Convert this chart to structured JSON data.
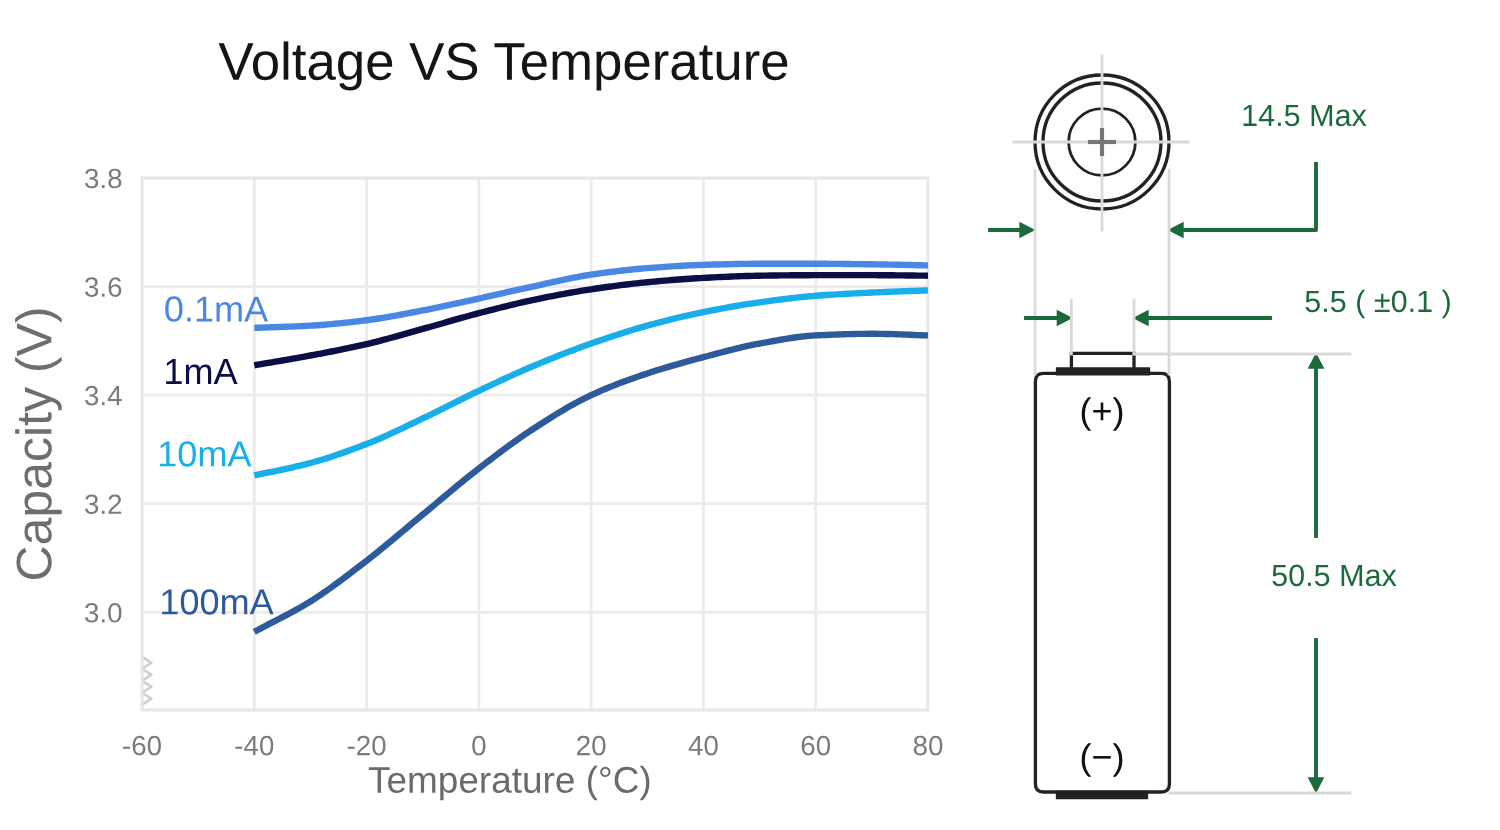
{
  "chart_data": {
    "type": "line",
    "title": "Voltage VS Temperature",
    "xlabel": "Temperature (°C)",
    "ylabel": "Capacity (V)",
    "xlim": [
      -60,
      80
    ],
    "xticks": [
      -60,
      -40,
      -20,
      0,
      20,
      40,
      60,
      80
    ],
    "ylim": [
      2.82,
      3.8
    ],
    "yticks": [
      {
        "value": 3,
        "label": "3.0"
      },
      3.2,
      3.4,
      3.6,
      3.8
    ],
    "grid": true,
    "x": [
      -40,
      -30,
      -20,
      -10,
      0,
      10,
      20,
      30,
      40,
      50,
      60,
      70,
      80
    ],
    "series": [
      {
        "name": "0.1mA",
        "color": "#4a86e4",
        "values": [
          3.524,
          3.528,
          3.538,
          3.556,
          3.578,
          3.601,
          3.622,
          3.634,
          3.64,
          3.642,
          3.642,
          3.641,
          3.639
        ]
      },
      {
        "name": "1mA",
        "color": "#0a0f45",
        "values": [
          3.455,
          3.473,
          3.494,
          3.522,
          3.551,
          3.576,
          3.595,
          3.608,
          3.616,
          3.62,
          3.621,
          3.621,
          3.62
        ]
      },
      {
        "name": "10mA",
        "color": "#17aeea",
        "values": [
          3.252,
          3.275,
          3.31,
          3.357,
          3.408,
          3.455,
          3.495,
          3.528,
          3.553,
          3.571,
          3.583,
          3.589,
          3.593
        ]
      },
      {
        "name": "100mA",
        "color": "#2d5a9b",
        "values": [
          2.964,
          3.02,
          3.095,
          3.18,
          3.265,
          3.34,
          3.4,
          3.44,
          3.47,
          3.495,
          3.51,
          3.513,
          3.51
        ]
      }
    ],
    "annotations": [
      "14.5 Max",
      "5.5 ( ±0.1 )",
      "50.5 Max",
      "(+)",
      "(−)"
    ]
  }
}
